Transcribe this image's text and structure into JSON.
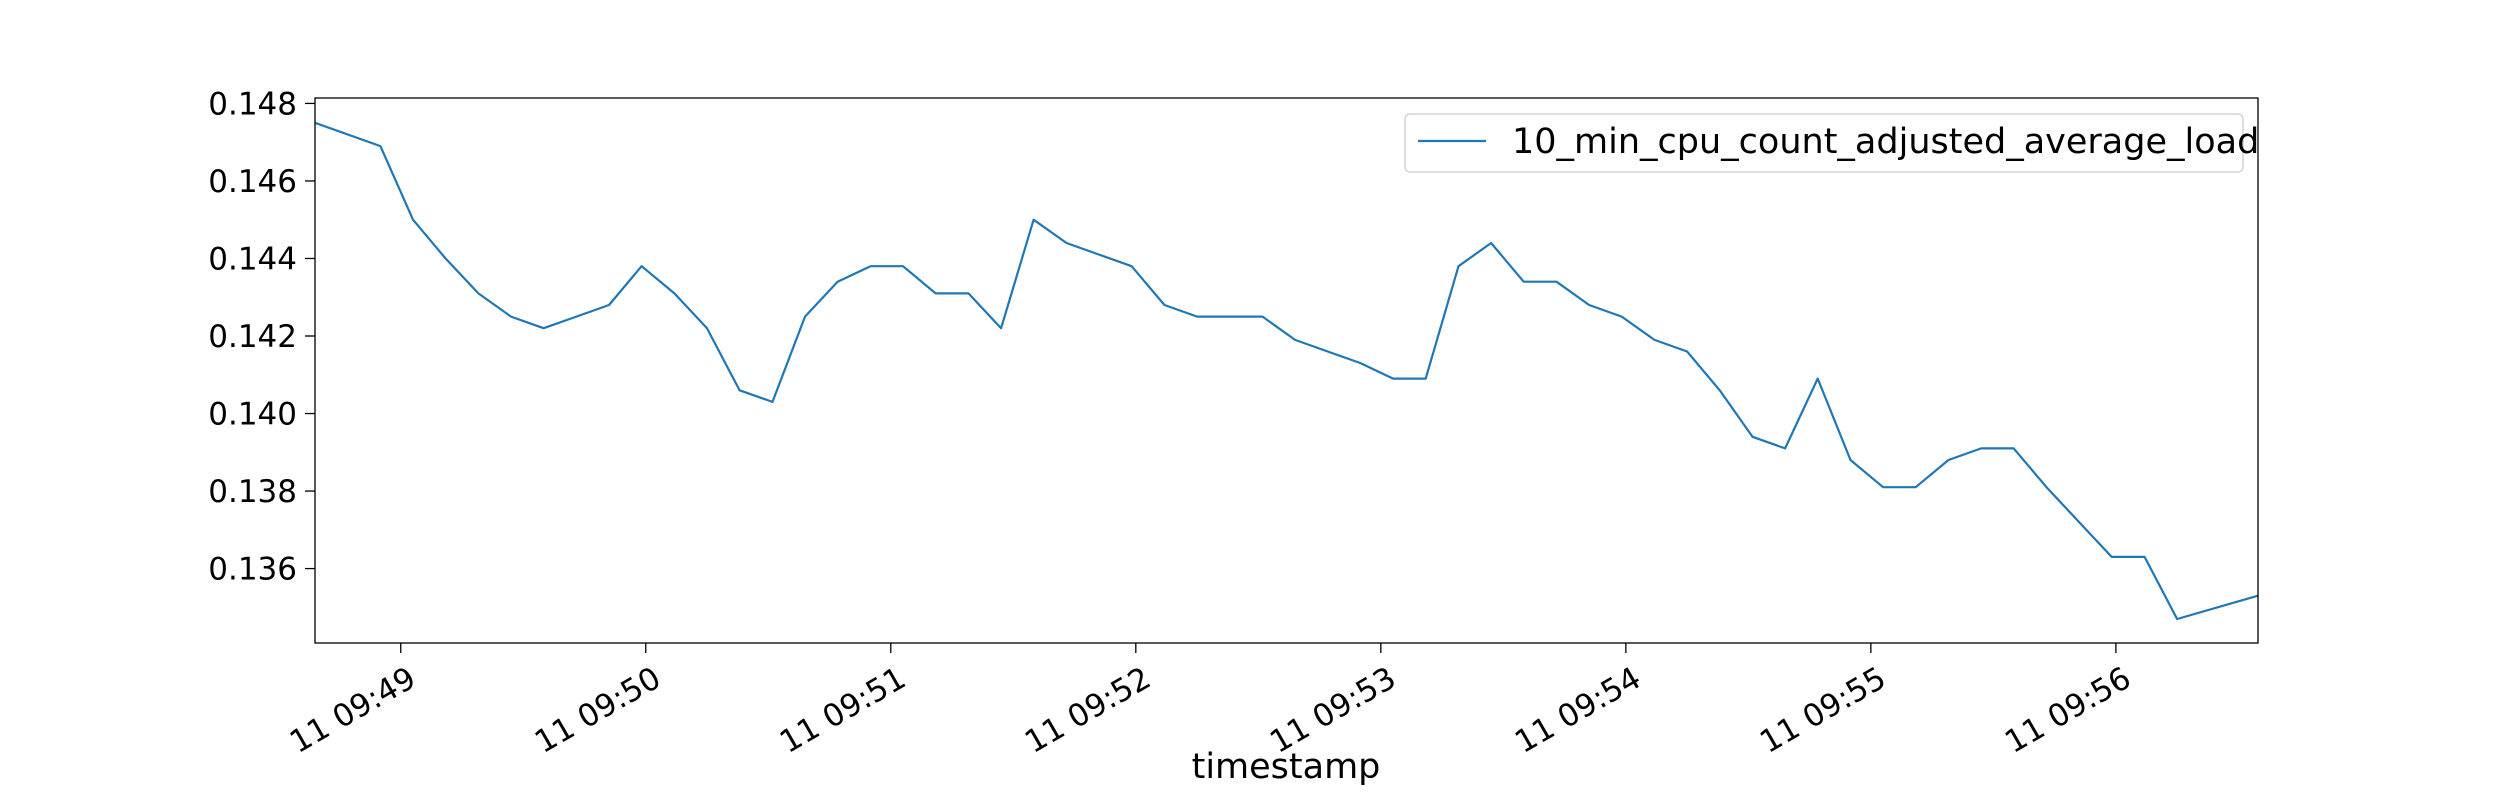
{
  "chart_data": {
    "type": "line",
    "xlabel": "timestamp",
    "ylabel": "",
    "x_ticks": [
      "11 09:49",
      "11 09:50",
      "11 09:51",
      "11 09:52",
      "11 09:53",
      "11 09:54",
      "11 09:55",
      "11 09:56"
    ],
    "x_tick_minutes": [
      49,
      50,
      51,
      52,
      53,
      54,
      55,
      56
    ],
    "xlim_minutes": [
      48.65,
      56.58
    ],
    "y_ticks": [
      "0.136",
      "0.138",
      "0.140",
      "0.142",
      "0.144",
      "0.146",
      "0.148"
    ],
    "ylim": [
      0.13408,
      0.14814
    ],
    "grid": false,
    "legend_position": "top-right",
    "colors": {
      "line": "#1f77b4"
    },
    "series": [
      {
        "name": "10_min_cpu_count_adjusted_average_load",
        "x_minutes": [
          48.65,
          48.917,
          49.05,
          49.183,
          49.317,
          49.45,
          49.583,
          49.717,
          49.85,
          49.983,
          50.117,
          50.25,
          50.383,
          50.517,
          50.65,
          50.783,
          50.917,
          51.05,
          51.183,
          51.317,
          51.45,
          51.583,
          51.717,
          51.85,
          51.983,
          52.117,
          52.25,
          52.383,
          52.517,
          52.65,
          52.783,
          52.917,
          53.05,
          53.183,
          53.317,
          53.45,
          53.583,
          53.717,
          53.85,
          53.983,
          54.117,
          54.25,
          54.383,
          54.517,
          54.65,
          54.783,
          54.917,
          55.05,
          55.183,
          55.317,
          55.45,
          55.583,
          55.717,
          55.85,
          55.983,
          56.117,
          56.25,
          56.58
        ],
        "y": [
          0.1475,
          0.1469,
          0.145,
          0.144,
          0.1431,
          0.1425,
          0.1422,
          0.1425,
          0.1428,
          0.1438,
          0.1431,
          0.1422,
          0.1406,
          0.1403,
          0.1425,
          0.1434,
          0.1438,
          0.1438,
          0.1431,
          0.1431,
          0.1422,
          0.145,
          0.1444,
          0.1441,
          0.1438,
          0.1428,
          0.1425,
          0.1425,
          0.1425,
          0.1419,
          0.1416,
          0.1413,
          0.1409,
          0.1409,
          0.1438,
          0.1444,
          0.1434,
          0.1434,
          0.1428,
          0.1425,
          0.1419,
          0.1416,
          0.1406,
          0.1394,
          0.1391,
          0.1409,
          0.1388,
          0.1381,
          0.1381,
          0.1388,
          0.1391,
          0.1391,
          0.1381,
          0.1372,
          0.1363,
          0.1363,
          0.1347,
          0.1353
        ]
      }
    ]
  }
}
